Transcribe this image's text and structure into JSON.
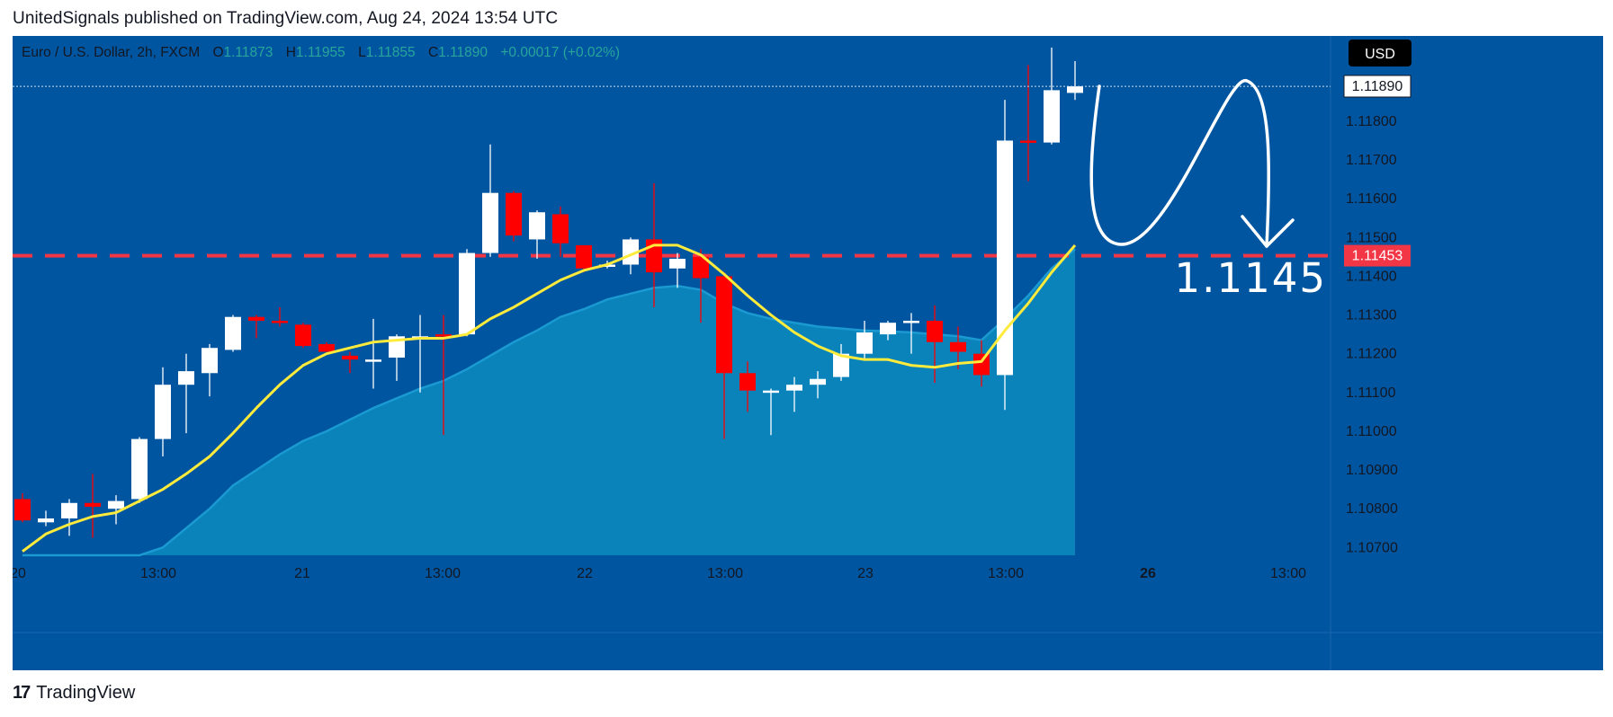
{
  "header": {
    "published_line": "UnitedSignals published on TradingView.com, Aug 24, 2024 13:54 UTC"
  },
  "footer": {
    "logo_mark": "17",
    "logo_text": "TradingView"
  },
  "legend": {
    "symbol": "Euro  / U.S. Dollar, 2h, FXCM",
    "o_prefix": "O",
    "o_value": "1.11873",
    "h_prefix": "H",
    "h_value": "1.11955",
    "l_prefix": "L",
    "l_value": "1.11855",
    "c_prefix": "C",
    "c_value": "1.11890",
    "change": "+0.00017 (+0.02%)"
  },
  "currency_button": "USD",
  "price_badges": {
    "last_price": "1.11890",
    "level_price": "1.11453"
  },
  "annotation": {
    "level_label": "1.1145"
  },
  "colors": {
    "chart_bg": "#0055a0",
    "area_fill": "#0b86bd",
    "up_candle": "#ffffff",
    "down_candle": "#ff0000",
    "ma_line": "#ffeb3b",
    "level_line": "#f23645",
    "legend_value": "#26a69a"
  },
  "chart_data": {
    "type": "candlestick",
    "symbol": "Euro  / U.S. Dollar, 2h, FXCM",
    "y_ticks": [
      "1.11800",
      "1.11700",
      "1.11600",
      "1.11500",
      "1.11400",
      "1.11300",
      "1.11200",
      "1.11100",
      "1.11000",
      "1.10900",
      "1.10800",
      "1.10700"
    ],
    "x_ticks": [
      "20",
      "13:00",
      "21",
      "13:00",
      "22",
      "13:00",
      "23",
      "13:00",
      "26",
      "13:00"
    ],
    "ylim": [
      1.1068,
      1.1202
    ],
    "horizontal_level": 1.11453,
    "candles": [
      {
        "o": 1.10825,
        "h": 1.1084,
        "l": 1.10765,
        "c": 1.1077
      },
      {
        "o": 1.10765,
        "h": 1.10795,
        "l": 1.10755,
        "c": 1.10775
      },
      {
        "o": 1.10775,
        "h": 1.10825,
        "l": 1.1073,
        "c": 1.10815
      },
      {
        "o": 1.10815,
        "h": 1.1089,
        "l": 1.10725,
        "c": 1.10805
      },
      {
        "o": 1.108,
        "h": 1.10835,
        "l": 1.1076,
        "c": 1.1082
      },
      {
        "o": 1.10825,
        "h": 1.10985,
        "l": 1.10815,
        "c": 1.1098
      },
      {
        "o": 1.1098,
        "h": 1.11165,
        "l": 1.10935,
        "c": 1.1112
      },
      {
        "o": 1.1112,
        "h": 1.112,
        "l": 1.10995,
        "c": 1.11155
      },
      {
        "o": 1.1115,
        "h": 1.11225,
        "l": 1.1109,
        "c": 1.11215
      },
      {
        "o": 1.1121,
        "h": 1.113,
        "l": 1.11205,
        "c": 1.11295
      },
      {
        "o": 1.11295,
        "h": 1.113,
        "l": 1.1124,
        "c": 1.11285
      },
      {
        "o": 1.11285,
        "h": 1.1132,
        "l": 1.1127,
        "c": 1.1128
      },
      {
        "o": 1.11275,
        "h": 1.1128,
        "l": 1.11215,
        "c": 1.1122
      },
      {
        "o": 1.11225,
        "h": 1.1123,
        "l": 1.11205,
        "c": 1.11205
      },
      {
        "o": 1.11195,
        "h": 1.11205,
        "l": 1.1115,
        "c": 1.11185
      },
      {
        "o": 1.11185,
        "h": 1.1129,
        "l": 1.1111,
        "c": 1.11185
      },
      {
        "o": 1.1119,
        "h": 1.1125,
        "l": 1.1113,
        "c": 1.11245
      },
      {
        "o": 1.11245,
        "h": 1.113,
        "l": 1.111,
        "c": 1.11245
      },
      {
        "o": 1.1125,
        "h": 1.113,
        "l": 1.1099,
        "c": 1.11245
      },
      {
        "o": 1.1125,
        "h": 1.1147,
        "l": 1.11245,
        "c": 1.1146
      },
      {
        "o": 1.1146,
        "h": 1.1174,
        "l": 1.1145,
        "c": 1.11615
      },
      {
        "o": 1.11615,
        "h": 1.1162,
        "l": 1.1149,
        "c": 1.11505
      },
      {
        "o": 1.11495,
        "h": 1.1157,
        "l": 1.11445,
        "c": 1.11565
      },
      {
        "o": 1.1156,
        "h": 1.1158,
        "l": 1.1145,
        "c": 1.11485
      },
      {
        "o": 1.1148,
        "h": 1.1148,
        "l": 1.1141,
        "c": 1.1142
      },
      {
        "o": 1.1143,
        "h": 1.1144,
        "l": 1.1142,
        "c": 1.1143
      },
      {
        "o": 1.1143,
        "h": 1.115,
        "l": 1.11405,
        "c": 1.11495
      },
      {
        "o": 1.11495,
        "h": 1.1164,
        "l": 1.1132,
        "c": 1.1141
      },
      {
        "o": 1.1142,
        "h": 1.1146,
        "l": 1.1137,
        "c": 1.11445
      },
      {
        "o": 1.1145,
        "h": 1.1147,
        "l": 1.1128,
        "c": 1.11395
      },
      {
        "o": 1.114,
        "h": 1.1141,
        "l": 1.1098,
        "c": 1.1115
      },
      {
        "o": 1.1115,
        "h": 1.1118,
        "l": 1.1105,
        "c": 1.11105
      },
      {
        "o": 1.11105,
        "h": 1.1111,
        "l": 1.1099,
        "c": 1.11105
      },
      {
        "o": 1.11105,
        "h": 1.1114,
        "l": 1.1105,
        "c": 1.1112
      },
      {
        "o": 1.1112,
        "h": 1.11155,
        "l": 1.11085,
        "c": 1.11135
      },
      {
        "o": 1.1114,
        "h": 1.11225,
        "l": 1.1113,
        "c": 1.112
      },
      {
        "o": 1.112,
        "h": 1.11285,
        "l": 1.11185,
        "c": 1.11255
      },
      {
        "o": 1.1125,
        "h": 1.11285,
        "l": 1.11235,
        "c": 1.1128
      },
      {
        "o": 1.1128,
        "h": 1.11305,
        "l": 1.112,
        "c": 1.11285
      },
      {
        "o": 1.11285,
        "h": 1.11325,
        "l": 1.11125,
        "c": 1.1123
      },
      {
        "o": 1.1123,
        "h": 1.1127,
        "l": 1.1116,
        "c": 1.11205
      },
      {
        "o": 1.112,
        "h": 1.11235,
        "l": 1.11115,
        "c": 1.11145
      },
      {
        "o": 1.11145,
        "h": 1.11855,
        "l": 1.11055,
        "c": 1.1175
      },
      {
        "o": 1.1175,
        "h": 1.11945,
        "l": 1.11645,
        "c": 1.11745
      },
      {
        "o": 1.11745,
        "h": 1.1199,
        "l": 1.1174,
        "c": 1.1188
      },
      {
        "o": 1.11873,
        "h": 1.11955,
        "l": 1.11855,
        "c": 1.1189
      }
    ],
    "moving_average": [
      1.1069,
      1.10735,
      1.1076,
      1.1078,
      1.1079,
      1.1082,
      1.1085,
      1.1089,
      1.10935,
      1.10995,
      1.1106,
      1.1112,
      1.1117,
      1.112,
      1.11215,
      1.1123,
      1.11235,
      1.1124,
      1.1124,
      1.1125,
      1.1129,
      1.1132,
      1.11355,
      1.1139,
      1.11415,
      1.1143,
      1.11455,
      1.1148,
      1.1148,
      1.11455,
      1.11405,
      1.1135,
      1.113,
      1.11255,
      1.1122,
      1.11195,
      1.11185,
      1.11185,
      1.1117,
      1.11165,
      1.11175,
      1.1118,
      1.1126,
      1.1133,
      1.1141,
      1.1148
    ],
    "area_series": [
      1.1042,
      1.1047,
      1.1052,
      1.1056,
      1.106,
      1.1065,
      1.107,
      1.1075,
      1.108,
      1.1086,
      1.109,
      1.1094,
      1.10975,
      1.11,
      1.1103,
      1.1106,
      1.11085,
      1.1111,
      1.1113,
      1.1116,
      1.11195,
      1.1123,
      1.1126,
      1.11295,
      1.11315,
      1.1134,
      1.11355,
      1.1137,
      1.11375,
      1.11365,
      1.1133,
      1.11305,
      1.1129,
      1.1128,
      1.1127,
      1.11265,
      1.1126,
      1.11258,
      1.11255,
      1.1125,
      1.11245,
      1.11235,
      1.1129,
      1.1135,
      1.1142,
      1.1147
    ]
  }
}
